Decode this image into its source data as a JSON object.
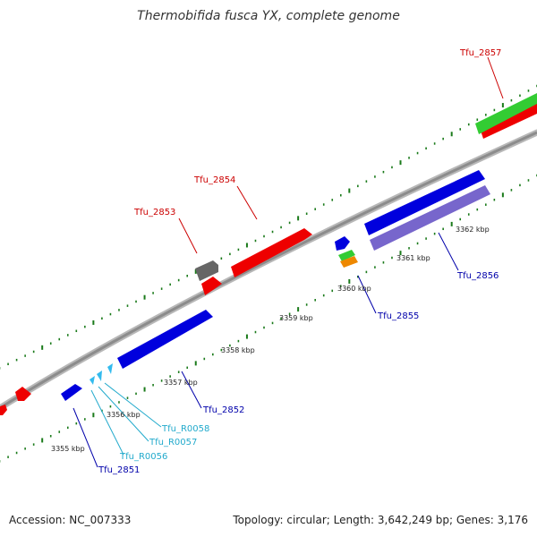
{
  "header": {
    "title": "Thermobifida fusca YX, complete genome"
  },
  "footer": {
    "accession": "Accession: NC_007333",
    "stats": "Topology: circular; Length: 3,642,249 bp; Genes: 3,176"
  },
  "colors": {
    "backbone": "#8c8c8c",
    "tick": "#1a7a1a",
    "reverse_label": "#cc0000",
    "forward_label": "#0000aa",
    "rna_label": "#22aacc",
    "gene_red": "#ee0000",
    "gene_blue": "#0000dd",
    "gene_green": "#33cc33",
    "gene_purple": "#7766cc",
    "gene_gray": "#666666",
    "gene_orange": "#ee8800",
    "gene_cyan": "#33bbee"
  },
  "scale_labels": [
    "3355 kbp",
    "3356 kbp",
    "3357 kbp",
    "3358 kbp",
    "3359 kbp",
    "3360 kbp",
    "3361 kbp",
    "3362 kbp"
  ],
  "gene_labels": {
    "tfu_2857": "Tfu_2857",
    "tfu_2854": "Tfu_2854",
    "tfu_2853": "Tfu_2853",
    "tfu_2856": "Tfu_2856",
    "tfu_2855": "Tfu_2855",
    "tfu_2852": "Tfu_2852",
    "tfu_r0058": "Tfu_R0058",
    "tfu_r0057": "Tfu_R0057",
    "tfu_r0056": "Tfu_R0056",
    "tfu_2851": "Tfu_2851"
  }
}
